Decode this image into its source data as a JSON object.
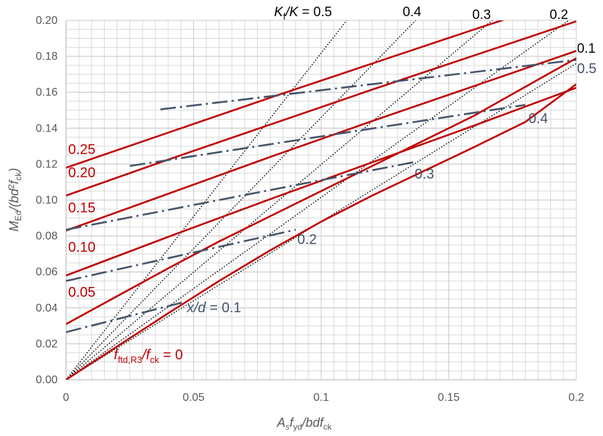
{
  "chart_data": {
    "type": "line",
    "xlim": [
      0,
      0.2
    ],
    "ylim": [
      0,
      0.2
    ],
    "x_ticks": [
      "0",
      "0.05",
      "0.1",
      "0.15",
      "0.2"
    ],
    "y_ticks": [
      "0.00",
      "0.02",
      "0.04",
      "0.06",
      "0.08",
      "0.10",
      "0.12",
      "0.14",
      "0.16",
      "0.18",
      "0.20"
    ],
    "grid": true,
    "xlabel": {
      "main1": "A",
      "sub1": "s",
      "main2": "f",
      "sub2": "yd",
      "main3": "/bdf",
      "sub3": "ck"
    },
    "ylabel": {
      "main1": "M",
      "sub1": "Ed",
      "main2": "/(bd",
      "sup": "2",
      "main3": "f",
      "sub3": "ck",
      "main4": ")"
    },
    "colors": {
      "fiber": "#c00000",
      "depth": "#44546a",
      "ratio": "#000000",
      "grid": "#d9d9d9",
      "axis": "#bfbfbf"
    },
    "fiber_series": [
      {
        "label": "0",
        "x": [
          0,
          0.02,
          0.04,
          0.06,
          0.08,
          0.1,
          0.12,
          0.14,
          0.16,
          0.18,
          0.2
        ],
        "y": [
          0,
          0.0185,
          0.037,
          0.055,
          0.072,
          0.088,
          0.1025,
          0.116,
          0.1295,
          0.1435,
          0.1645
        ]
      },
      {
        "label": "0.05",
        "x": [
          0,
          0.02,
          0.04,
          0.06,
          0.08,
          0.1,
          0.12,
          0.14,
          0.16,
          0.18,
          0.2
        ],
        "y": [
          0.031,
          0.0465,
          0.062,
          0.077,
          0.091,
          0.105,
          0.119,
          0.133,
          0.147,
          0.163,
          0.179
        ]
      },
      {
        "label": "0.10",
        "x": [
          0,
          0.04,
          0.08,
          0.12,
          0.16,
          0.2
        ],
        "y": [
          0.058,
          0.0795,
          0.1005,
          0.121,
          0.1415,
          0.1625
        ]
      },
      {
        "label": "0.15",
        "x": [
          0,
          0.04,
          0.08,
          0.12,
          0.16,
          0.2
        ],
        "y": [
          0.083,
          0.1035,
          0.124,
          0.144,
          0.1635,
          0.183
        ]
      },
      {
        "label": "0.20",
        "x": [
          0,
          0.04,
          0.08,
          0.12,
          0.16,
          0.2
        ],
        "y": [
          0.1025,
          0.1225,
          0.142,
          0.1615,
          0.1805,
          0.1995
        ]
      },
      {
        "label": "0.25",
        "x": [
          0,
          0.04,
          0.08,
          0.12,
          0.16,
          0.2
        ],
        "y": [
          0.118,
          0.1375,
          0.157,
          0.176,
          0.195,
          0.2135
        ]
      }
    ],
    "fiber_labels": [
      "0.25",
      "0.20",
      "0.15",
      "0.10",
      "0.05"
    ],
    "fiber_zero_label": {
      "main1": "f",
      "sub1": "ftd,R3",
      "main2": "/f",
      "sub2": "ck",
      "value": " = 0"
    },
    "depth_series": [
      {
        "label": "x/d = 0.1",
        "x": [
          0,
          0.047
        ],
        "y": [
          0.0265,
          0.0435
        ]
      },
      {
        "label": "0.2",
        "x": [
          0,
          0.09
        ],
        "y": [
          0.055,
          0.0835
        ]
      },
      {
        "label": "0.3",
        "x": [
          0,
          0.136
        ],
        "y": [
          0.0835,
          0.121
        ]
      },
      {
        "label": "0.4",
        "x": [
          0.025,
          0.18
        ],
        "y": [
          0.119,
          0.153
        ]
      },
      {
        "label": "0.5",
        "x": [
          0.037,
          0.2
        ],
        "y": [
          0.1505,
          0.178
        ]
      }
    ],
    "depth_labels": {
      "first_prefix": "x",
      "first_mid": "/d",
      "first_value": " = 0.1",
      "others": [
        "0.2",
        "0.3",
        "0.4",
        "0.5"
      ]
    },
    "ratio_series": [
      {
        "label": "0.5",
        "x": [
          0,
          0.11
        ],
        "y": [
          0,
          0.2
        ]
      },
      {
        "label": "0.4",
        "x": [
          0,
          0.137
        ],
        "y": [
          0,
          0.2
        ]
      },
      {
        "label": "0.3",
        "x": [
          0,
          0.167
        ],
        "y": [
          0,
          0.2
        ]
      },
      {
        "label": "0.2",
        "x": [
          0,
          0.197
        ],
        "y": [
          0,
          0.2
        ]
      },
      {
        "label": "0.1",
        "x": [
          0,
          0.2
        ],
        "y": [
          0,
          0.176
        ]
      }
    ],
    "ratio_labels": {
      "prefix_main1": "K",
      "prefix_sub": "f",
      "prefix_main2": "/K",
      "first_value": " = 0.5",
      "others": [
        "0.4",
        "0.3",
        "0.2",
        "0.1"
      ]
    }
  }
}
